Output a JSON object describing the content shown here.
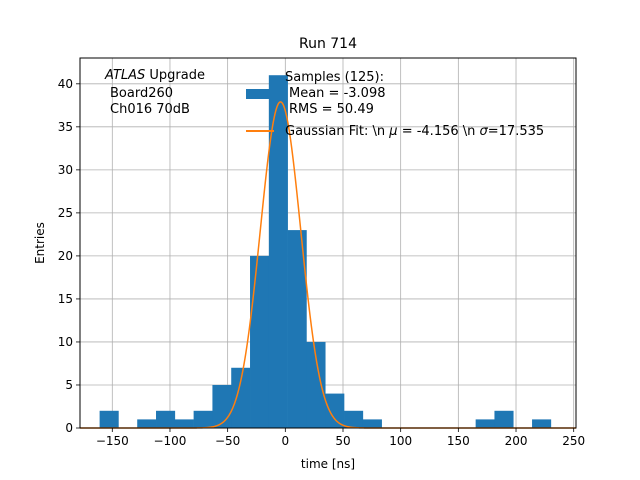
{
  "chart_data": {
    "type": "bar",
    "title": "Run 714",
    "xlabel": "time [ns]",
    "ylabel": "Entries",
    "xlim": [
      -178,
      252
    ],
    "ylim": [
      0,
      43
    ],
    "x_ticks": [
      -150,
      -100,
      -50,
      0,
      50,
      100,
      150,
      200,
      250
    ],
    "y_ticks": [
      0,
      5,
      10,
      15,
      20,
      25,
      30,
      35,
      40
    ],
    "grid": true,
    "bin_width": 16.3,
    "bins": [
      {
        "x0": -161.0,
        "count": 2
      },
      {
        "x0": -128.4,
        "count": 1
      },
      {
        "x0": -112.1,
        "count": 2
      },
      {
        "x0": -95.8,
        "count": 1
      },
      {
        "x0": -79.5,
        "count": 2
      },
      {
        "x0": -63.2,
        "count": 5
      },
      {
        "x0": -46.9,
        "count": 7
      },
      {
        "x0": -30.6,
        "count": 20
      },
      {
        "x0": -14.3,
        "count": 41
      },
      {
        "x0": 2.0,
        "count": 23
      },
      {
        "x0": 18.3,
        "count": 10
      },
      {
        "x0": 34.6,
        "count": 4
      },
      {
        "x0": 50.9,
        "count": 2
      },
      {
        "x0": 67.2,
        "count": 1
      },
      {
        "x0": 165.0,
        "count": 1
      },
      {
        "x0": 181.3,
        "count": 2
      },
      {
        "x0": 213.9,
        "count": 1
      }
    ],
    "fit": {
      "type": "gaussian",
      "mu": -4.156,
      "sigma": 17.535,
      "amplitude": 37.9
    },
    "annotation": {
      "atlas": "ATLAS",
      "upgrade": " Upgrade",
      "board": "Board260",
      "channel": "Ch016 70dB"
    },
    "legend": {
      "placement": "top-right",
      "samples_line1": "Samples (125):",
      "samples_line2": "Mean = -3.098",
      "samples_line3": "RMS = 50.49",
      "fit_prefix": "Gaussian Fit: \\n ",
      "fit_mu_sym": "μ",
      "fit_mid": " = -4.156 \\n ",
      "fit_sigma_sym": "σ",
      "fit_suffix": "=17.535"
    },
    "colors": {
      "bars": "#1f77b4",
      "fit": "#ff7f0e",
      "grid": "#b0b0b0"
    }
  }
}
